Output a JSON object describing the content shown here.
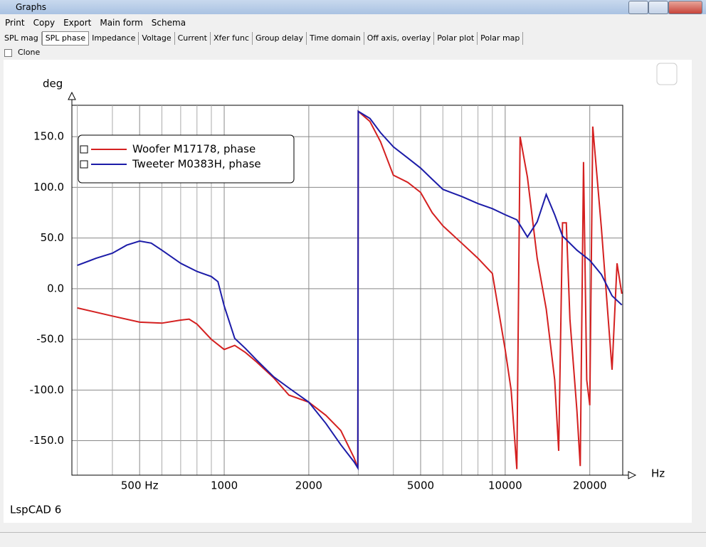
{
  "window": {
    "title": "Graphs",
    "menu": [
      "Print",
      "Copy",
      "Export",
      "Main form",
      "Schema"
    ],
    "tabs": [
      "SPL mag",
      "SPL phase",
      "Impedance",
      "Voltage",
      "Current",
      "Xfer func",
      "Group delay",
      "Time domain",
      "Off axis, overlay",
      "Polar plot",
      "Polar map"
    ],
    "checkbox": "Clone",
    "footer": "LspCAD 6"
  },
  "chart_data": {
    "type": "line",
    "xlabel": "Hz",
    "ylabel": "deg",
    "xscale": "log",
    "grid": true,
    "legend": "upper left",
    "xlim": [
      287,
      26200
    ],
    "ylim": [
      -184,
      181
    ],
    "xticks": [
      {
        "value": 500,
        "label": "500 Hz"
      },
      1000,
      2000,
      5000,
      10000,
      20000
    ],
    "xminor": [
      300,
      400,
      600,
      700,
      800,
      900,
      3000,
      4000,
      6000,
      7000,
      8000,
      9000
    ],
    "yticks": [
      {
        "value": -150,
        "label": "-150.0"
      },
      {
        "value": -100,
        "label": "-100.0"
      },
      {
        "value": -50,
        "label": "-50.0"
      },
      {
        "value": 0,
        "label": "0.0"
      },
      {
        "value": 50,
        "label": "50.0"
      },
      {
        "value": 100,
        "label": "100.0"
      },
      {
        "value": 150,
        "label": "150.0"
      }
    ],
    "series": [
      {
        "name": "Woofer M17178, phase",
        "color": "#d42020",
        "x": [
          300,
          400,
          500,
          600,
          700,
          750,
          800,
          900,
          1000,
          1090,
          1190,
          1300,
          1500,
          1700,
          2000,
          2300,
          2600,
          2900,
          2990,
          3000,
          3300,
          3600,
          4000,
          4500,
          5000,
          5500,
          6000,
          7000,
          8000,
          9000,
          10000,
          10500,
          11000,
          11300,
          12000,
          13000,
          14000,
          15000,
          15500,
          16000,
          16500,
          17000,
          18000,
          18500,
          19000,
          19500,
          20000,
          20500,
          22000,
          24000,
          25000,
          26000
        ],
        "values": [
          -19,
          -27,
          -33,
          -34,
          -31,
          -30,
          -35,
          -50,
          -60,
          -56,
          -63,
          -72,
          -88,
          -105,
          -112,
          -125,
          -140,
          -167,
          -177,
          175,
          165,
          145,
          112,
          105,
          95,
          75,
          62,
          45,
          30,
          15,
          -60,
          -100,
          -178,
          150,
          110,
          30,
          -20,
          -90,
          -160,
          65,
          65,
          -30,
          -120,
          -175,
          125,
          -90,
          -115,
          160,
          60,
          -80,
          25,
          -5
        ]
      },
      {
        "name": "Tweeter M0383H, phase",
        "color": "#1c1ca8",
        "x": [
          300,
          350,
          400,
          450,
          500,
          550,
          600,
          700,
          800,
          900,
          950,
          1000,
          1090,
          1190,
          1300,
          1500,
          1700,
          2000,
          2300,
          2600,
          2900,
          2990,
          3000,
          3300,
          3600,
          4000,
          4500,
          5000,
          5500,
          6000,
          7000,
          8000,
          9000,
          10000,
          11000,
          12000,
          13000,
          14000,
          15000,
          16000,
          18000,
          20000,
          22000,
          24000,
          26000
        ],
        "values": [
          23,
          30,
          35,
          43,
          47,
          45,
          38,
          25,
          17,
          12,
          7,
          -17,
          -49,
          -59,
          -70,
          -87,
          -98,
          -112,
          -133,
          -154,
          -171,
          -177,
          175,
          168,
          154,
          140,
          129,
          119,
          108,
          98,
          91,
          84,
          79,
          73,
          68,
          51,
          66,
          93,
          73,
          52,
          38,
          28,
          14,
          -7,
          -16
        ]
      }
    ]
  }
}
